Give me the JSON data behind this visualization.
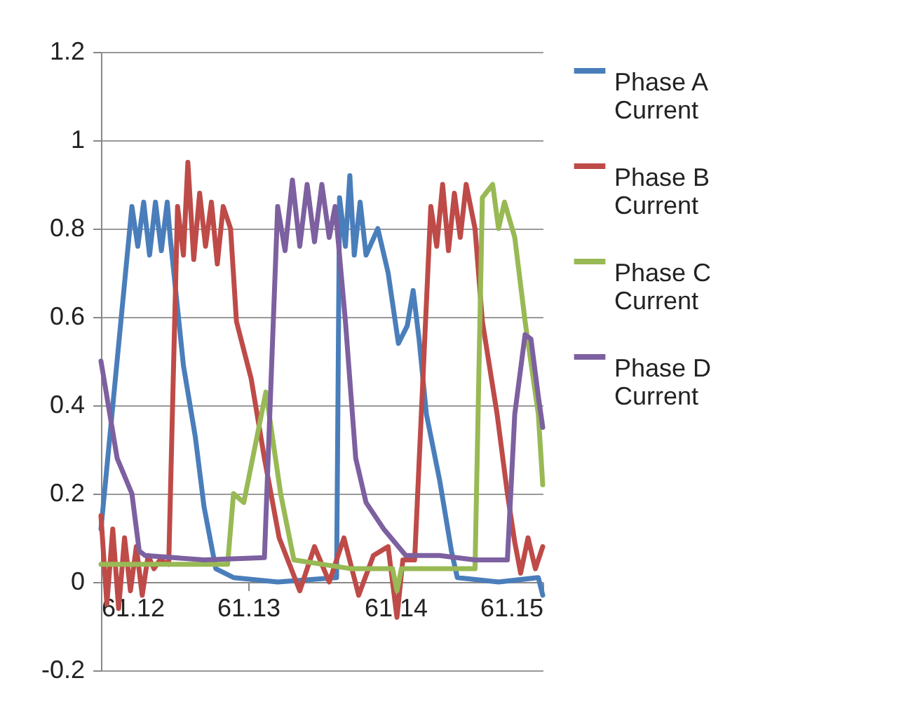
{
  "chart_data": {
    "type": "line",
    "xlim": [
      61.12,
      61.15
    ],
    "xticks": [
      61.12,
      61.13,
      61.14,
      61.15
    ],
    "ylim": [
      -0.2,
      1.2
    ],
    "yticks": [
      -0.2,
      0,
      0.2,
      0.4,
      0.6,
      0.8,
      1,
      1.2
    ],
    "grid": "y",
    "legend": "right",
    "marker": "none",
    "line_style": "solid",
    "series": [
      {
        "name": "Phase A Current",
        "color": "#4a7ebb",
        "x": [
          61.12,
          61.1221,
          61.1225,
          61.1229,
          61.1233,
          61.1237,
          61.1241,
          61.1245,
          61.1247,
          61.1256,
          61.1264,
          61.127,
          61.1278,
          61.129,
          61.132,
          61.136,
          61.1362,
          61.1366,
          61.1369,
          61.1372,
          61.1376,
          61.138,
          61.1388,
          61.1395,
          61.1402,
          61.1408,
          61.1412,
          61.1416,
          61.1421,
          61.143,
          61.1438,
          61.1442,
          61.147,
          61.1497,
          61.15
        ],
        "values": [
          0.12,
          0.85,
          0.76,
          0.86,
          0.74,
          0.86,
          0.75,
          0.86,
          0.78,
          0.49,
          0.33,
          0.17,
          0.03,
          0.01,
          0.0,
          0.01,
          0.87,
          0.76,
          0.92,
          0.74,
          0.86,
          0.74,
          0.8,
          0.7,
          0.54,
          0.58,
          0.66,
          0.55,
          0.38,
          0.23,
          0.07,
          0.01,
          0.0,
          0.01,
          -0.03
        ]
      },
      {
        "name": "Phase B Current",
        "color": "#be4b48",
        "x": [
          61.12,
          61.1204,
          61.1208,
          61.1212,
          61.1216,
          61.122,
          61.1224,
          61.1228,
          61.1232,
          61.1236,
          61.124,
          61.1246,
          61.1249,
          61.1252,
          61.1256,
          61.1259,
          61.1263,
          61.1267,
          61.1271,
          61.1275,
          61.1279,
          61.1283,
          61.1288,
          61.1292,
          61.1302,
          61.1311,
          61.1321,
          61.1328,
          61.1335,
          61.1345,
          61.1355,
          61.1365,
          61.1375,
          61.1385,
          61.1395,
          61.1401,
          61.1405,
          61.1413,
          61.1424,
          61.1428,
          61.1432,
          61.1436,
          61.144,
          61.1444,
          61.1448,
          61.1454,
          61.1459,
          61.1469,
          61.1476,
          61.1481,
          61.1485,
          61.149,
          61.1495,
          61.15
        ],
        "values": [
          0.15,
          -0.05,
          0.12,
          -0.06,
          0.1,
          -0.02,
          0.08,
          -0.03,
          0.06,
          0.03,
          0.05,
          0.04,
          0.45,
          0.85,
          0.74,
          0.95,
          0.73,
          0.88,
          0.76,
          0.86,
          0.72,
          0.85,
          0.8,
          0.59,
          0.46,
          0.28,
          0.1,
          0.04,
          -0.02,
          0.08,
          0.0,
          0.1,
          -0.03,
          0.06,
          0.08,
          -0.08,
          0.05,
          0.05,
          0.85,
          0.76,
          0.9,
          0.75,
          0.88,
          0.78,
          0.9,
          0.8,
          0.59,
          0.38,
          0.2,
          0.09,
          0.02,
          0.1,
          0.03,
          0.08
        ]
      },
      {
        "name": "Phase C Current",
        "color": "#98b954",
        "x": [
          61.12,
          61.125,
          61.1286,
          61.129,
          61.1297,
          61.1312,
          61.1322,
          61.1331,
          61.137,
          61.1398,
          61.1401,
          61.1404,
          61.1454,
          61.1459,
          61.1466,
          61.147,
          61.1474,
          61.1481,
          61.1488,
          61.1497,
          61.15
        ],
        "values": [
          0.04,
          0.04,
          0.04,
          0.2,
          0.18,
          0.43,
          0.2,
          0.05,
          0.03,
          0.03,
          -0.02,
          0.03,
          0.03,
          0.87,
          0.9,
          0.8,
          0.86,
          0.78,
          0.59,
          0.38,
          0.22
        ]
      },
      {
        "name": "Phase D Current",
        "color": "#7d60a0",
        "x": [
          61.12,
          61.1211,
          61.1221,
          61.1226,
          61.123,
          61.127,
          61.1311,
          61.1316,
          61.132,
          61.1325,
          61.133,
          61.1335,
          61.134,
          61.1345,
          61.135,
          61.1355,
          61.1359,
          61.1366,
          61.1373,
          61.138,
          61.1392,
          61.1407,
          61.143,
          61.1454,
          61.1476,
          61.1481,
          61.1488,
          61.1492,
          61.1497,
          61.15
        ],
        "values": [
          0.5,
          0.28,
          0.2,
          0.07,
          0.06,
          0.05,
          0.055,
          0.5,
          0.85,
          0.75,
          0.91,
          0.76,
          0.9,
          0.77,
          0.9,
          0.78,
          0.85,
          0.59,
          0.28,
          0.18,
          0.12,
          0.06,
          0.06,
          0.05,
          0.05,
          0.38,
          0.56,
          0.55,
          0.42,
          0.35
        ]
      }
    ]
  }
}
